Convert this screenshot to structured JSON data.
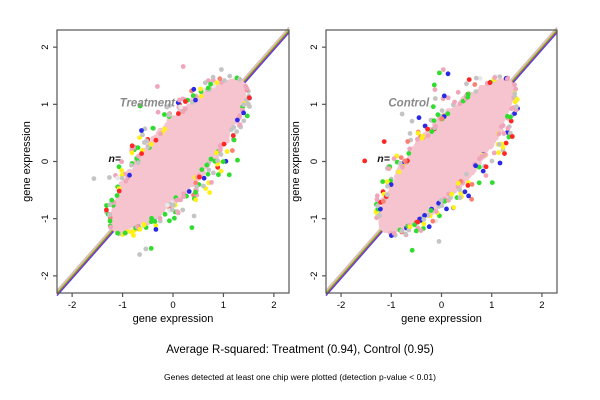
{
  "figure": {
    "background": "#ffffff",
    "axis_color": "#555555",
    "tick_label_color": "#000000"
  },
  "caption": {
    "r_squared_line": "Average R-squared: Treatment (0.94), Control (0.95)",
    "footnote": "Genes detected at least one chip were plotted (detection p-value < 0.01)"
  },
  "chart_data": [
    {
      "type": "scatter",
      "title": "Treatment",
      "title_color": "#8A8A8A",
      "n_label": "n=",
      "n_label_color": "#111111",
      "xlabel": "gene expression",
      "ylabel": "gene expression",
      "xlim": [
        -2.3,
        2.3
      ],
      "ylim": [
        -2.3,
        2.3
      ],
      "xticks": [
        -2,
        -1,
        0,
        1,
        2
      ],
      "yticks": [
        -2,
        -1,
        0,
        1,
        2
      ],
      "r_squared": 0.94,
      "diagonal_line_colors": [
        "#C0C0C0",
        "#FFB6C1",
        "#D8C060",
        "#2FCC2F",
        "#FF3344",
        "#4444EE"
      ],
      "cloud": {
        "seed": 7,
        "core_color": "#F6C4CF",
        "center": 0.1,
        "half_length": 1.3,
        "half_width": 0.42,
        "n_core": 1150,
        "n_edge": 250,
        "edge_colors": [
          [
            "#C4C4C4",
            24
          ],
          [
            "#EFA5BA",
            20
          ],
          [
            "#2EDD2E",
            20
          ],
          [
            "#FFF01A",
            12
          ],
          [
            "#FF2626",
            8
          ],
          [
            "#2A2AE6",
            7
          ],
          [
            "#FA8072",
            5
          ],
          [
            "#E8E8E8",
            4
          ]
        ]
      }
    },
    {
      "type": "scatter",
      "title": "Control",
      "title_color": "#8A8A8A",
      "n_label": "n=",
      "n_label_color": "#111111",
      "xlabel": "gene expression",
      "ylabel": "gene expression",
      "xlim": [
        -2.3,
        2.3
      ],
      "ylim": [
        -2.3,
        2.3
      ],
      "xticks": [
        -2,
        -1,
        0,
        1,
        2
      ],
      "yticks": [
        -2,
        -1,
        0,
        1,
        2
      ],
      "r_squared": 0.95,
      "diagonal_line_colors": [
        "#C0C0C0",
        "#FFB6C1",
        "#D8C060",
        "#2FCC2F",
        "#FF3344",
        "#4444EE"
      ],
      "cloud": {
        "seed": 23,
        "core_color": "#F6C4CF",
        "center": 0.1,
        "half_length": 1.3,
        "half_width": 0.42,
        "n_core": 1150,
        "n_edge": 250,
        "edge_colors": [
          [
            "#C4C4C4",
            24
          ],
          [
            "#EFA5BA",
            20
          ],
          [
            "#2EDD2E",
            20
          ],
          [
            "#FFF01A",
            12
          ],
          [
            "#FF2626",
            8
          ],
          [
            "#2A2AE6",
            7
          ],
          [
            "#FA8072",
            5
          ],
          [
            "#E8E8E8",
            4
          ]
        ]
      }
    }
  ]
}
